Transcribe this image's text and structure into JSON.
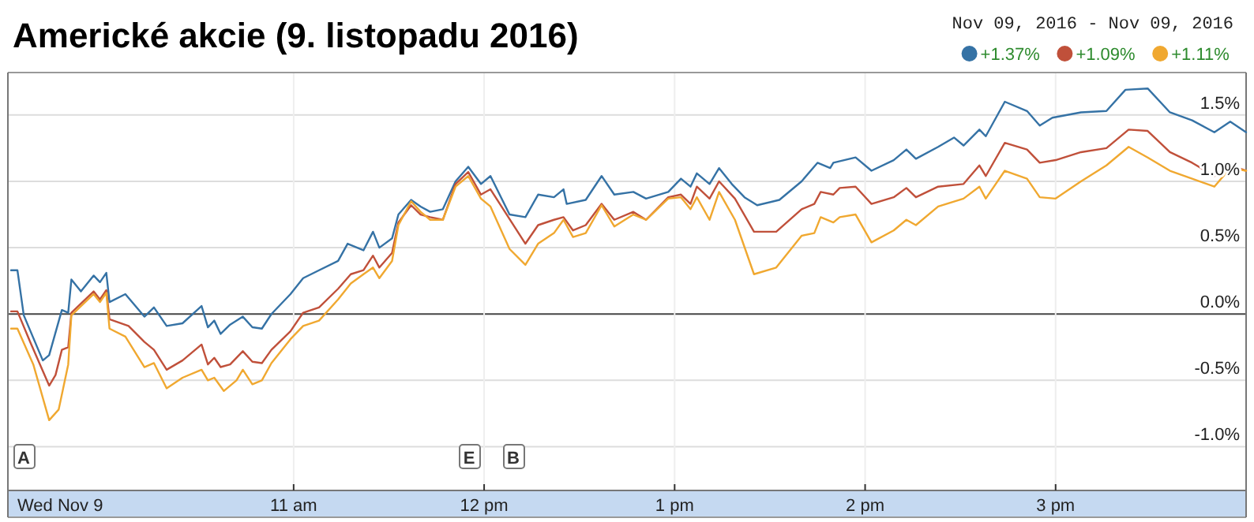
{
  "chart_data": {
    "type": "line",
    "title": "Americké akcie (9. listopadu 2016)",
    "subtitle": "Nov 09, 2016 - Nov 09, 2016",
    "xlim": [
      "2016-11-09T09:30",
      "2016-11-09T16:00"
    ],
    "ylim": [
      -1.33,
      1.82
    ],
    "xticks": [
      {
        "value": "2016-11-09T11:00",
        "label": "11 am"
      },
      {
        "value": "2016-11-09T12:00",
        "label": "12 pm"
      },
      {
        "value": "2016-11-09T13:00",
        "label": "1 pm"
      },
      {
        "value": "2016-11-09T14:00",
        "label": "2 pm"
      },
      {
        "value": "2016-11-09T15:00",
        "label": "3 pm"
      }
    ],
    "yticks": [
      {
        "value": -1,
        "label": "-1.0%"
      },
      {
        "value": -0.5,
        "label": "-0.5%"
      },
      {
        "value": 0,
        "label": "0.0%"
      },
      {
        "value": 0.5,
        "label": "0.5%"
      },
      {
        "value": 1,
        "label": "1.0%"
      },
      {
        "value": 1.5,
        "label": "1.5%"
      }
    ],
    "grid": true,
    "legend": "top right",
    "marker": "none",
    "line_style": "solid",
    "annotations": [
      "Wed Nov 9",
      "A",
      "E",
      "B"
    ],
    "series": [
      {
        "name": "+1.37%",
        "color": "#3572a5",
        "x": [
          "2016-11-09T09:31",
          "2016-11-09T09:33",
          "2016-11-09T09:35",
          "2016-11-09T09:41",
          "2016-11-09T09:43",
          "2016-11-09T09:47",
          "2016-11-09T09:49",
          "2016-11-09T09:50",
          "2016-11-09T09:53",
          "2016-11-09T09:57",
          "2016-11-09T09:59",
          "2016-11-09T10:01",
          "2016-11-09T10:02",
          "2016-11-09T10:07",
          "2016-11-09T10:13",
          "2016-11-09T10:16",
          "2016-11-09T10:20",
          "2016-11-09T10:25",
          "2016-11-09T10:31",
          "2016-11-09T10:33",
          "2016-11-09T10:35",
          "2016-11-09T10:37",
          "2016-11-09T10:40",
          "2016-11-09T10:44",
          "2016-11-09T10:47",
          "2016-11-09T10:50",
          "2016-11-09T10:53",
          "2016-11-09T10:59",
          "2016-11-09T11:03",
          "2016-11-09T11:08",
          "2016-11-09T11:14",
          "2016-11-09T11:17",
          "2016-11-09T11:22",
          "2016-11-09T11:25",
          "2016-11-09T11:27",
          "2016-11-09T11:31",
          "2016-11-09T11:33",
          "2016-11-09T11:37",
          "2016-11-09T11:40",
          "2016-11-09T11:43",
          "2016-11-09T11:47",
          "2016-11-09T11:51",
          "2016-11-09T11:55",
          "2016-11-09T11:59",
          "2016-11-09T12:02",
          "2016-11-09T12:08",
          "2016-11-09T12:13",
          "2016-11-09T12:17",
          "2016-11-09T12:22",
          "2016-11-09T12:25",
          "2016-11-09T12:26",
          "2016-11-09T12:32",
          "2016-11-09T12:37",
          "2016-11-09T12:41",
          "2016-11-09T12:47",
          "2016-11-09T12:51",
          "2016-11-09T12:58",
          "2016-11-09T13:02",
          "2016-11-09T13:05",
          "2016-11-09T13:07",
          "2016-11-09T13:11",
          "2016-11-09T13:14",
          "2016-11-09T13:18",
          "2016-11-09T13:22",
          "2016-11-09T13:26",
          "2016-11-09T13:33",
          "2016-11-09T13:40",
          "2016-11-09T13:45",
          "2016-11-09T13:49",
          "2016-11-09T13:50",
          "2016-11-09T13:57",
          "2016-11-09T14:02",
          "2016-11-09T14:09",
          "2016-11-09T14:13",
          "2016-11-09T14:16",
          "2016-11-09T14:23",
          "2016-11-09T14:28",
          "2016-11-09T14:31",
          "2016-11-09T14:36",
          "2016-11-09T14:38",
          "2016-11-09T14:44",
          "2016-11-09T14:51",
          "2016-11-09T14:55",
          "2016-11-09T14:59",
          "2016-11-09T15:08",
          "2016-11-09T15:16",
          "2016-11-09T15:22",
          "2016-11-09T15:29",
          "2016-11-09T15:36",
          "2016-11-09T15:43",
          "2016-11-09T15:50",
          "2016-11-09T15:55",
          "2016-11-09T16:00"
        ],
        "values": [
          0.33,
          0.33,
          -0.01,
          -0.35,
          -0.31,
          0.03,
          0.01,
          0.26,
          0.17,
          0.29,
          0.24,
          0.31,
          0.09,
          0.15,
          -0.02,
          0.05,
          -0.09,
          -0.07,
          0.06,
          -0.1,
          -0.05,
          -0.15,
          -0.08,
          -0.02,
          -0.1,
          -0.11,
          0.0,
          0.15,
          0.27,
          0.33,
          0.4,
          0.53,
          0.48,
          0.62,
          0.5,
          0.57,
          0.75,
          0.86,
          0.81,
          0.77,
          0.79,
          1.0,
          1.11,
          0.98,
          1.04,
          0.75,
          0.73,
          0.9,
          0.88,
          0.94,
          0.83,
          0.86,
          1.04,
          0.9,
          0.92,
          0.87,
          0.92,
          1.02,
          0.96,
          1.06,
          0.98,
          1.1,
          0.98,
          0.88,
          0.82,
          0.86,
          1.0,
          1.14,
          1.1,
          1.14,
          1.18,
          1.08,
          1.16,
          1.24,
          1.17,
          1.26,
          1.33,
          1.27,
          1.39,
          1.34,
          1.6,
          1.53,
          1.42,
          1.48,
          1.52,
          1.53,
          1.69,
          1.7,
          1.52,
          1.46,
          1.37,
          1.45,
          1.37
        ]
      },
      {
        "name": "+1.09%",
        "color": "#c0503a",
        "x": [
          "2016-11-09T09:31",
          "2016-11-09T09:33",
          "2016-11-09T09:37",
          "2016-11-09T09:43",
          "2016-11-09T09:45",
          "2016-11-09T09:47",
          "2016-11-09T09:49",
          "2016-11-09T09:50",
          "2016-11-09T09:57",
          "2016-11-09T09:59",
          "2016-11-09T10:01",
          "2016-11-09T10:02",
          "2016-11-09T10:08",
          "2016-11-09T10:13",
          "2016-11-09T10:16",
          "2016-11-09T10:20",
          "2016-11-09T10:25",
          "2016-11-09T10:31",
          "2016-11-09T10:33",
          "2016-11-09T10:35",
          "2016-11-09T10:37",
          "2016-11-09T10:40",
          "2016-11-09T10:44",
          "2016-11-09T10:47",
          "2016-11-09T10:50",
          "2016-11-09T10:53",
          "2016-11-09T10:59",
          "2016-11-09T11:03",
          "2016-11-09T11:08",
          "2016-11-09T11:14",
          "2016-11-09T11:18",
          "2016-11-09T11:22",
          "2016-11-09T11:25",
          "2016-11-09T11:27",
          "2016-11-09T11:31",
          "2016-11-09T11:33",
          "2016-11-09T11:37",
          "2016-11-09T11:40",
          "2016-11-09T11:43",
          "2016-11-09T11:47",
          "2016-11-09T11:51",
          "2016-11-09T11:55",
          "2016-11-09T11:59",
          "2016-11-09T12:02",
          "2016-11-09T12:13",
          "2016-11-09T12:17",
          "2016-11-09T12:22",
          "2016-11-09T12:25",
          "2016-11-09T12:28",
          "2016-11-09T12:32",
          "2016-11-09T12:37",
          "2016-11-09T12:41",
          "2016-11-09T12:47",
          "2016-11-09T12:51",
          "2016-11-09T12:58",
          "2016-11-09T13:02",
          "2016-11-09T13:05",
          "2016-11-09T13:07",
          "2016-11-09T13:11",
          "2016-11-09T13:14",
          "2016-11-09T13:19",
          "2016-11-09T13:25",
          "2016-11-09T13:32",
          "2016-11-09T13:40",
          "2016-11-09T13:44",
          "2016-11-09T13:46",
          "2016-11-09T13:50",
          "2016-11-09T13:52",
          "2016-11-09T13:57",
          "2016-11-09T14:02",
          "2016-11-09T14:09",
          "2016-11-09T14:13",
          "2016-11-09T14:16",
          "2016-11-09T14:23",
          "2016-11-09T14:31",
          "2016-11-09T14:36",
          "2016-11-09T14:38",
          "2016-11-09T14:44",
          "2016-11-09T14:51",
          "2016-11-09T14:55",
          "2016-11-09T15:00",
          "2016-11-09T15:08",
          "2016-11-09T15:16",
          "2016-11-09T15:23",
          "2016-11-09T15:29",
          "2016-11-09T15:36",
          "2016-11-09T15:43",
          "2016-11-09T15:50",
          "2016-11-09T15:55",
          "2016-11-09T16:00"
        ],
        "values": [
          0.02,
          0.02,
          -0.21,
          -0.54,
          -0.46,
          -0.27,
          -0.25,
          0.01,
          0.17,
          0.11,
          0.18,
          -0.04,
          -0.09,
          -0.21,
          -0.27,
          -0.42,
          -0.35,
          -0.23,
          -0.38,
          -0.33,
          -0.4,
          -0.38,
          -0.28,
          -0.36,
          -0.37,
          -0.27,
          -0.13,
          0.01,
          0.05,
          0.19,
          0.3,
          0.33,
          0.44,
          0.35,
          0.46,
          0.69,
          0.82,
          0.75,
          0.73,
          0.71,
          0.98,
          1.07,
          0.9,
          0.94,
          0.53,
          0.67,
          0.71,
          0.73,
          0.63,
          0.67,
          0.83,
          0.71,
          0.77,
          0.71,
          0.88,
          0.9,
          0.83,
          0.96,
          0.87,
          1.0,
          0.87,
          0.62,
          0.62,
          0.79,
          0.83,
          0.92,
          0.9,
          0.95,
          0.96,
          0.83,
          0.88,
          0.95,
          0.88,
          0.96,
          0.98,
          1.12,
          1.04,
          1.29,
          1.24,
          1.14,
          1.16,
          1.22,
          1.25,
          1.39,
          1.38,
          1.22,
          1.14,
          1.04,
          1.12,
          1.08
        ]
      },
      {
        "name": "+1.11%",
        "color": "#f0a830",
        "x": [
          "2016-11-09T09:31",
          "2016-11-09T09:33",
          "2016-11-09T09:38",
          "2016-11-09T09:43",
          "2016-11-09T09:46",
          "2016-11-09T09:49",
          "2016-11-09T09:50",
          "2016-11-09T09:57",
          "2016-11-09T09:59",
          "2016-11-09T10:01",
          "2016-11-09T10:02",
          "2016-11-09T10:07",
          "2016-11-09T10:13",
          "2016-11-09T10:16",
          "2016-11-09T10:20",
          "2016-11-09T10:25",
          "2016-11-09T10:31",
          "2016-11-09T10:33",
          "2016-11-09T10:35",
          "2016-11-09T10:38",
          "2016-11-09T10:42",
          "2016-11-09T10:44",
          "2016-11-09T10:47",
          "2016-11-09T10:50",
          "2016-11-09T10:53",
          "2016-11-09T10:59",
          "2016-11-09T11:03",
          "2016-11-09T11:08",
          "2016-11-09T11:14",
          "2016-11-09T11:18",
          "2016-11-09T11:22",
          "2016-11-09T11:25",
          "2016-11-09T11:27",
          "2016-11-09T11:31",
          "2016-11-09T11:33",
          "2016-11-09T11:37",
          "2016-11-09T11:40",
          "2016-11-09T11:43",
          "2016-11-09T11:47",
          "2016-11-09T11:51",
          "2016-11-09T11:55",
          "2016-11-09T11:59",
          "2016-11-09T12:02",
          "2016-11-09T12:08",
          "2016-11-09T12:13",
          "2016-11-09T12:17",
          "2016-11-09T12:22",
          "2016-11-09T12:25",
          "2016-11-09T12:28",
          "2016-11-09T12:32",
          "2016-11-09T12:37",
          "2016-11-09T12:41",
          "2016-11-09T12:47",
          "2016-11-09T12:51",
          "2016-11-09T12:58",
          "2016-11-09T13:02",
          "2016-11-09T13:05",
          "2016-11-09T13:07",
          "2016-11-09T13:11",
          "2016-11-09T13:14",
          "2016-11-09T13:19",
          "2016-11-09T13:25",
          "2016-11-09T13:32",
          "2016-11-09T13:40",
          "2016-11-09T13:44",
          "2016-11-09T13:46",
          "2016-11-09T13:50",
          "2016-11-09T13:52",
          "2016-11-09T13:57",
          "2016-11-09T14:02",
          "2016-11-09T14:09",
          "2016-11-09T14:13",
          "2016-11-09T14:16",
          "2016-11-09T14:23",
          "2016-11-09T14:31",
          "2016-11-09T14:36",
          "2016-11-09T14:38",
          "2016-11-09T14:44",
          "2016-11-09T14:51",
          "2016-11-09T14:55",
          "2016-11-09T15:00",
          "2016-11-09T15:08",
          "2016-11-09T15:16",
          "2016-11-09T15:23",
          "2016-11-09T15:29",
          "2016-11-09T15:36",
          "2016-11-09T15:43",
          "2016-11-09T15:50",
          "2016-11-09T15:55",
          "2016-11-09T16:00"
        ],
        "values": [
          -0.11,
          -0.11,
          -0.38,
          -0.8,
          -0.72,
          -0.38,
          -0.01,
          0.15,
          0.09,
          0.16,
          -0.11,
          -0.17,
          -0.4,
          -0.37,
          -0.56,
          -0.48,
          -0.42,
          -0.5,
          -0.48,
          -0.58,
          -0.5,
          -0.42,
          -0.53,
          -0.5,
          -0.37,
          -0.19,
          -0.09,
          -0.05,
          0.11,
          0.23,
          0.3,
          0.35,
          0.27,
          0.4,
          0.67,
          0.85,
          0.77,
          0.71,
          0.71,
          0.96,
          1.04,
          0.87,
          0.81,
          0.49,
          0.37,
          0.53,
          0.61,
          0.71,
          0.58,
          0.61,
          0.82,
          0.66,
          0.75,
          0.71,
          0.87,
          0.88,
          0.79,
          0.88,
          0.71,
          0.92,
          0.71,
          0.3,
          0.35,
          0.59,
          0.61,
          0.73,
          0.69,
          0.73,
          0.75,
          0.54,
          0.63,
          0.71,
          0.67,
          0.81,
          0.87,
          0.96,
          0.87,
          1.08,
          1.02,
          0.88,
          0.87,
          1.0,
          1.12,
          1.26,
          1.18,
          1.08,
          1.02,
          0.96,
          1.1,
          1.08
        ]
      }
    ]
  }
}
